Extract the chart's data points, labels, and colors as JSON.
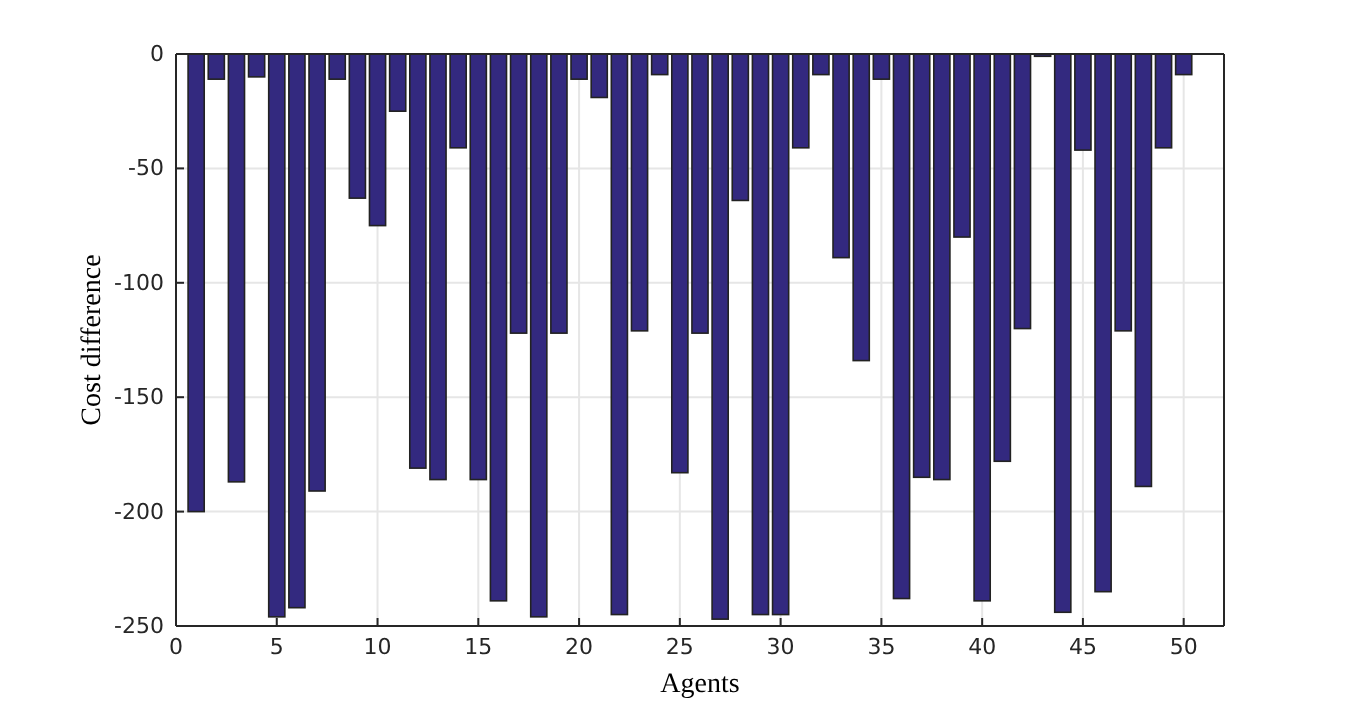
{
  "chart_data": {
    "type": "bar",
    "xlabel": "Agents",
    "ylabel": "Cost difference",
    "x": [
      1,
      2,
      3,
      4,
      5,
      6,
      7,
      8,
      9,
      10,
      11,
      12,
      13,
      14,
      15,
      16,
      17,
      18,
      19,
      20,
      21,
      22,
      23,
      24,
      25,
      26,
      27,
      28,
      29,
      30,
      31,
      32,
      33,
      34,
      35,
      36,
      37,
      38,
      39,
      40,
      41,
      42,
      43,
      44,
      45,
      46,
      47,
      48,
      49,
      50
    ],
    "values": [
      -200,
      -11,
      -187,
      -10,
      -246,
      -242,
      -191,
      -11,
      -63,
      -75,
      -25,
      -181,
      -186,
      -41,
      -186,
      -239,
      -122,
      -246,
      -122,
      -11,
      -19,
      -245,
      -121,
      -9,
      -183,
      -122,
      -247,
      -64,
      -245,
      -245,
      -41,
      -9,
      -89,
      -134,
      -11,
      -238,
      -185,
      -186,
      -80,
      -239,
      -178,
      -120,
      -1,
      -244,
      -42,
      -235,
      -121,
      -189,
      -41,
      -9
    ],
    "color": "#33297f",
    "xlim": [
      0,
      52
    ],
    "xticks": [
      0,
      5,
      10,
      15,
      20,
      25,
      30,
      35,
      40,
      45,
      50
    ],
    "ylim": [
      -250,
      0
    ],
    "yticks": [
      -250,
      -200,
      -150,
      -100,
      -50,
      0
    ],
    "grid": true
  }
}
